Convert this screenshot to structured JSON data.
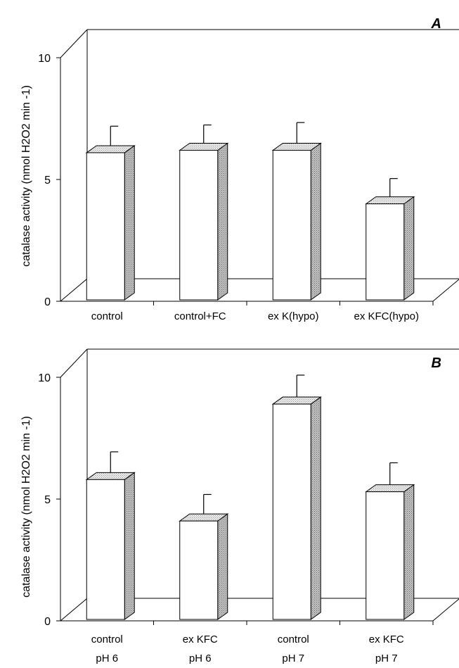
{
  "chart_data": [
    {
      "type": "bar",
      "panel_label": "A",
      "ylabel": "catalase activity (nmol H2O2 min -1)",
      "ylim": [
        0,
        10
      ],
      "yticks": [
        "0",
        "5",
        "10"
      ],
      "yticks_values": [
        0,
        5,
        10
      ],
      "categories": [
        [
          "control"
        ],
        [
          "control+FC"
        ],
        [
          "ex K(hypo)"
        ],
        [
          "ex KFC(hypo)"
        ]
      ],
      "values": [
        6.1,
        6.2,
        6.2,
        4.0
      ],
      "errors": [
        0.8,
        0.75,
        0.85,
        0.75
      ],
      "colors": {
        "front": "#ffffff",
        "top": "#e6e6e6",
        "side": "#b3b3b3"
      }
    },
    {
      "type": "bar",
      "panel_label": "B",
      "ylabel": "catalase activity (nmol H2O2 min -1)",
      "ylim": [
        0,
        10
      ],
      "yticks": [
        "0",
        "5",
        "10"
      ],
      "yticks_values": [
        0,
        5,
        10
      ],
      "categories": [
        [
          "control",
          "pH 6"
        ],
        [
          "ex KFC",
          "pH 6"
        ],
        [
          "control",
          "pH 7"
        ],
        [
          "ex KFC",
          "pH 7"
        ]
      ],
      "values": [
        5.8,
        4.1,
        8.9,
        5.3
      ],
      "errors": [
        0.85,
        0.8,
        0.9,
        0.9
      ],
      "colors": {
        "front": "#ffffff",
        "top": "#e6e6e6",
        "side": "#b3b3b3"
      }
    }
  ]
}
